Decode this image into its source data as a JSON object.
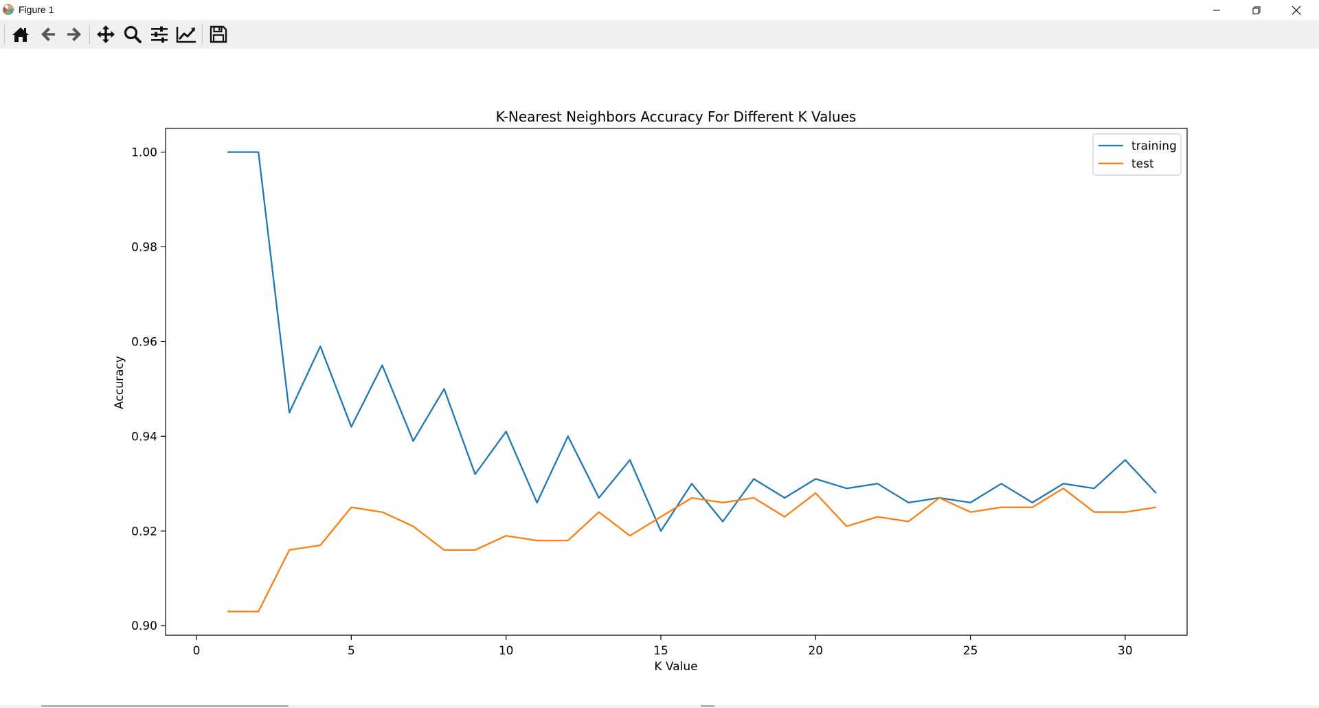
{
  "window": {
    "title": "Figure 1",
    "controls": {
      "minimize": "minimize",
      "maximize": "restore",
      "close": "close"
    }
  },
  "toolbar": {
    "buttons": [
      {
        "name": "home",
        "icon": "home-icon"
      },
      {
        "name": "back",
        "icon": "arrow-left-icon"
      },
      {
        "name": "forward",
        "icon": "arrow-right-icon"
      },
      {
        "name": "pan",
        "icon": "move-icon"
      },
      {
        "name": "zoom",
        "icon": "magnifier-icon"
      },
      {
        "name": "configure-subplots",
        "icon": "sliders-icon"
      },
      {
        "name": "edit-axis",
        "icon": "line-chart-icon"
      },
      {
        "name": "save",
        "icon": "floppy-disk-icon"
      }
    ]
  },
  "chart_data": {
    "type": "line",
    "title": "K-Nearest Neighbors Accuracy For Different K Values",
    "xlabel": "K Value",
    "ylabel": "Accuracy",
    "xlim": [
      -1,
      32
    ],
    "ylim": [
      0.898,
      1.005
    ],
    "xticks": [
      0,
      5,
      10,
      15,
      20,
      25,
      30
    ],
    "xtick_labels": [
      "0",
      "5",
      "10",
      "15",
      "20",
      "25",
      "30"
    ],
    "yticks": [
      0.9,
      0.92,
      0.94,
      0.96,
      0.98,
      1.0
    ],
    "ytick_labels": [
      "0.90",
      "0.92",
      "0.94",
      "0.96",
      "0.98",
      "1.00"
    ],
    "grid": false,
    "legend_position": "top-right",
    "x": [
      1,
      2,
      3,
      4,
      5,
      6,
      7,
      8,
      9,
      10,
      11,
      12,
      13,
      14,
      15,
      16,
      17,
      18,
      19,
      20,
      21,
      22,
      23,
      24,
      25,
      26,
      27,
      28,
      29,
      30,
      31
    ],
    "series": [
      {
        "name": "training",
        "color": "#1f77b4",
        "values": [
          1.0,
          1.0,
          0.945,
          0.959,
          0.942,
          0.955,
          0.939,
          0.95,
          0.932,
          0.941,
          0.926,
          0.94,
          0.927,
          0.935,
          0.92,
          0.93,
          0.922,
          0.931,
          0.927,
          0.931,
          0.929,
          0.93,
          0.926,
          0.927,
          0.926,
          0.93,
          0.926,
          0.93,
          0.929,
          0.935,
          0.928
        ]
      },
      {
        "name": "test",
        "color": "#ff7f0e",
        "values": [
          0.903,
          0.903,
          0.916,
          0.917,
          0.925,
          0.924,
          0.921,
          0.916,
          0.916,
          0.919,
          0.918,
          0.918,
          0.924,
          0.919,
          0.923,
          0.927,
          0.926,
          0.927,
          0.923,
          0.928,
          0.921,
          0.923,
          0.922,
          0.927,
          0.924,
          0.925,
          0.925,
          0.929,
          0.924,
          0.924,
          0.925
        ]
      }
    ]
  }
}
